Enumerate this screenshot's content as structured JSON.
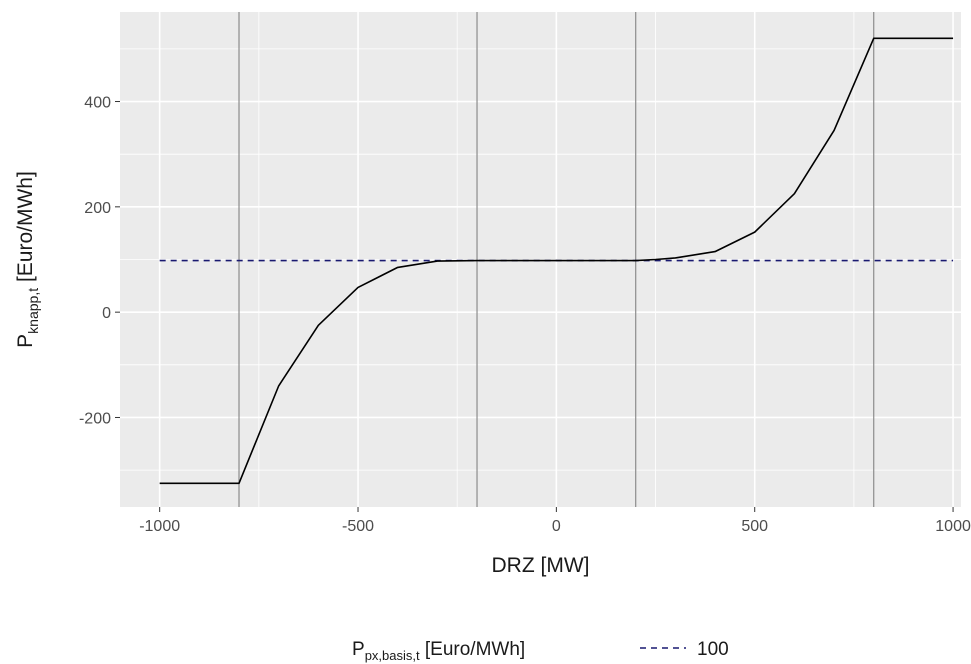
{
  "chart_data": {
    "type": "line",
    "xlabel": "DRZ [MW]",
    "ylabel": {
      "main": "P",
      "sub": "knapp,t",
      "rest": " [Euro/MWh]"
    },
    "xlim": [
      -1100,
      1020
    ],
    "ylim": [
      -370,
      570
    ],
    "x_ticks": [
      -1000,
      -500,
      0,
      500,
      1000
    ],
    "x_tick_labels": [
      "-1000",
      "-500",
      "0",
      "500",
      "1000"
    ],
    "y_ticks": [
      -200,
      0,
      200,
      400
    ],
    "y_tick_labels": [
      "-200",
      "0",
      "200",
      "400"
    ],
    "grid": true,
    "background": "#ebebeb",
    "vertical_lines": [
      -800,
      -200,
      200,
      800
    ],
    "series": [
      {
        "line_style": "solid",
        "color": "#000000",
        "x": [
          -1000,
          -800,
          -700,
          -600,
          -500,
          -400,
          -300,
          -200,
          0,
          200,
          250,
          300,
          400,
          500,
          600,
          700,
          800,
          1000
        ],
        "y": [
          -325,
          -325,
          -140,
          -25,
          47,
          85,
          97,
          98,
          98,
          98,
          100,
          103,
          115,
          152,
          225,
          345,
          520,
          520
        ]
      }
    ],
    "reference_line": {
      "y": 98,
      "x": [
        -1000,
        1000
      ],
      "line_style": "dashed",
      "color": "#191970"
    },
    "legend": {
      "position": "bottom",
      "title_main": "P",
      "title_sub": "px,basis,t",
      "title_rest": " [Euro/MWh]",
      "label": "100"
    }
  }
}
